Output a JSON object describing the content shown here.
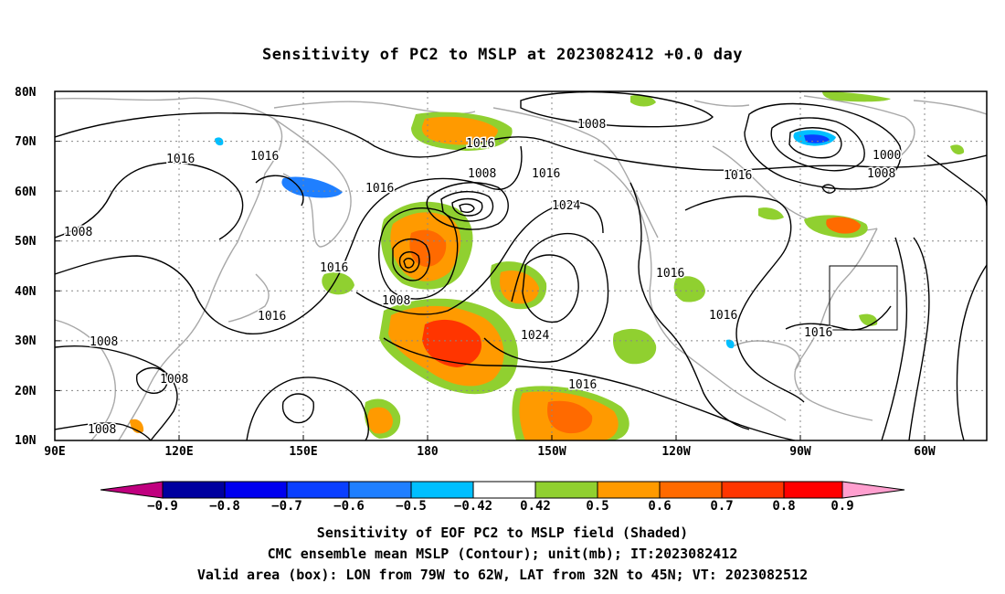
{
  "title": "Sensitivity of PC2 to MSLP at 2023082412 +0.0 day",
  "map": {
    "lon_labels": [
      "90E",
      "120E",
      "150E",
      "180",
      "150W",
      "120W",
      "90W",
      "60W"
    ],
    "lat_labels": [
      "80N",
      "70N",
      "60N",
      "50N",
      "40N",
      "30N",
      "20N",
      "10N"
    ],
    "colors": {
      "coast": "#a8a8a8",
      "contour": "#000000",
      "grid": "#888888"
    },
    "contour_labels": [
      "1016",
      "1008",
      "1016",
      "1016",
      "1016",
      "1024",
      "1008",
      "1016",
      "1016",
      "1024",
      "1016",
      "1016",
      "1016",
      "1008",
      "1016",
      "1008",
      "1008",
      "1008",
      "1000",
      "1008",
      "1016"
    ],
    "valid_box": {
      "lon": [
        "79W",
        "62W"
      ],
      "lat": [
        "32N",
        "45N"
      ]
    }
  },
  "colorbar": {
    "labels": [
      "−0.9",
      "−0.8",
      "−0.7",
      "−0.6",
      "−0.5",
      "−0.42",
      "0.42",
      "0.5",
      "0.6",
      "0.7",
      "0.8",
      "0.9"
    ],
    "colors": [
      "#c0007f",
      "#00009f",
      "#0000ef",
      "#0a3fff",
      "#1f7fff",
      "#00bfff",
      "#ffffff",
      "#90d030",
      "#ff9a00",
      "#ff6a00",
      "#ff3500",
      "#ff0000",
      "#ff9fcf"
    ]
  },
  "captions": [
    "Sensitivity of EOF PC2 to MSLP field (Shaded)",
    "CMC ensemble mean MSLP (Contour); unit(mb); IT:2023082412",
    "Valid area (box): LON from 79W to 62W, LAT from 32N to 45N; VT: 2023082512"
  ]
}
